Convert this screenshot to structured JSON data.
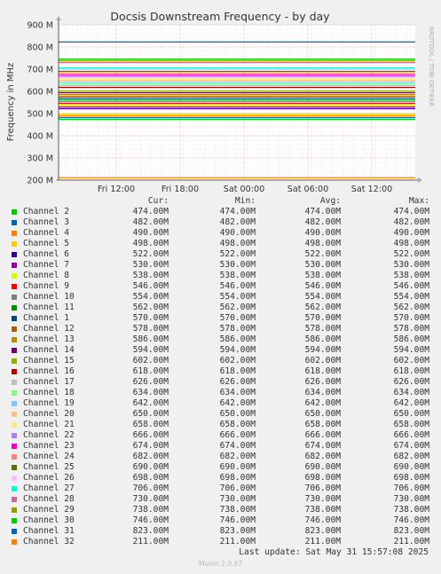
{
  "chart_data": {
    "type": "line",
    "title": "Docsis Downstream Frequency - by day",
    "ylabel": "Frequency in MHz",
    "side_label": "RRDTOOL / TOBI OETIKER",
    "ylim": [
      200,
      900
    ],
    "y_ticks": [
      "200 M",
      "300 M",
      "400 M",
      "500 M",
      "600 M",
      "700 M",
      "800 M",
      "900 M"
    ],
    "x_ticks": [
      "Fri 12:00",
      "Fri 18:00",
      "Sat 00:00",
      "Sat 06:00",
      "Sat 12:00"
    ],
    "grid": true,
    "legend_headers": {
      "cur": "Cur:",
      "min": "Min:",
      "avg": "Avg:",
      "max": "Max:"
    },
    "series": [
      {
        "name": "Channel 2",
        "color": "#00cc00",
        "value": 474,
        "cur": "474.00M",
        "min": "474.00M",
        "avg": "474.00M",
        "max": "474.00M"
      },
      {
        "name": "Channel 3",
        "color": "#0066b3",
        "value": 482,
        "cur": "482.00M",
        "min": "482.00M",
        "avg": "482.00M",
        "max": "482.00M"
      },
      {
        "name": "Channel 4",
        "color": "#ff8000",
        "value": 490,
        "cur": "490.00M",
        "min": "490.00M",
        "avg": "490.00M",
        "max": "490.00M"
      },
      {
        "name": "Channel 5",
        "color": "#ffcc00",
        "value": 498,
        "cur": "498.00M",
        "min": "498.00M",
        "avg": "498.00M",
        "max": "498.00M"
      },
      {
        "name": "Channel 6",
        "color": "#330099",
        "value": 522,
        "cur": "522.00M",
        "min": "522.00M",
        "avg": "522.00M",
        "max": "522.00M"
      },
      {
        "name": "Channel 7",
        "color": "#990099",
        "value": 530,
        "cur": "530.00M",
        "min": "530.00M",
        "avg": "530.00M",
        "max": "530.00M"
      },
      {
        "name": "Channel 8",
        "color": "#ccff00",
        "value": 538,
        "cur": "538.00M",
        "min": "538.00M",
        "avg": "538.00M",
        "max": "538.00M"
      },
      {
        "name": "Channel 9",
        "color": "#ff0000",
        "value": 546,
        "cur": "546.00M",
        "min": "546.00M",
        "avg": "546.00M",
        "max": "546.00M"
      },
      {
        "name": "Channel 10",
        "color": "#808080",
        "value": 554,
        "cur": "554.00M",
        "min": "554.00M",
        "avg": "554.00M",
        "max": "554.00M"
      },
      {
        "name": "Channel 11",
        "color": "#008f00",
        "value": 562,
        "cur": "562.00M",
        "min": "562.00M",
        "avg": "562.00M",
        "max": "562.00M"
      },
      {
        "name": "Channel 1",
        "color": "#00487d",
        "value": 570,
        "cur": "570.00M",
        "min": "570.00M",
        "avg": "570.00M",
        "max": "570.00M"
      },
      {
        "name": "Channel 12",
        "color": "#b35a00",
        "value": 578,
        "cur": "578.00M",
        "min": "578.00M",
        "avg": "578.00M",
        "max": "578.00M"
      },
      {
        "name": "Channel 13",
        "color": "#b38f00",
        "value": 586,
        "cur": "586.00M",
        "min": "586.00M",
        "avg": "586.00M",
        "max": "586.00M"
      },
      {
        "name": "Channel 14",
        "color": "#6b006b",
        "value": 594,
        "cur": "594.00M",
        "min": "594.00M",
        "avg": "594.00M",
        "max": "594.00M"
      },
      {
        "name": "Channel 15",
        "color": "#8fb300",
        "value": 602,
        "cur": "602.00M",
        "min": "602.00M",
        "avg": "602.00M",
        "max": "602.00M"
      },
      {
        "name": "Channel 16",
        "color": "#b30000",
        "value": 618,
        "cur": "618.00M",
        "min": "618.00M",
        "avg": "618.00M",
        "max": "618.00M"
      },
      {
        "name": "Channel 17",
        "color": "#bebebe",
        "value": 626,
        "cur": "626.00M",
        "min": "626.00M",
        "avg": "626.00M",
        "max": "626.00M"
      },
      {
        "name": "Channel 18",
        "color": "#80ff80",
        "value": 634,
        "cur": "634.00M",
        "min": "634.00M",
        "avg": "634.00M",
        "max": "634.00M"
      },
      {
        "name": "Channel 19",
        "color": "#80c9ff",
        "value": 642,
        "cur": "642.00M",
        "min": "642.00M",
        "avg": "642.00M",
        "max": "642.00M"
      },
      {
        "name": "Channel 20",
        "color": "#ffc080",
        "value": 650,
        "cur": "650.00M",
        "min": "650.00M",
        "avg": "650.00M",
        "max": "650.00M"
      },
      {
        "name": "Channel 21",
        "color": "#ffe680",
        "value": 658,
        "cur": "658.00M",
        "min": "658.00M",
        "avg": "658.00M",
        "max": "658.00M"
      },
      {
        "name": "Channel 22",
        "color": "#aa80ff",
        "value": 666,
        "cur": "666.00M",
        "min": "666.00M",
        "avg": "666.00M",
        "max": "666.00M"
      },
      {
        "name": "Channel 23",
        "color": "#ee00cc",
        "value": 674,
        "cur": "674.00M",
        "min": "674.00M",
        "avg": "674.00M",
        "max": "674.00M"
      },
      {
        "name": "Channel 24",
        "color": "#ff8080",
        "value": 682,
        "cur": "682.00M",
        "min": "682.00M",
        "avg": "682.00M",
        "max": "682.00M"
      },
      {
        "name": "Channel 25",
        "color": "#666600",
        "value": 690,
        "cur": "690.00M",
        "min": "690.00M",
        "avg": "690.00M",
        "max": "690.00M"
      },
      {
        "name": "Channel 26",
        "color": "#ffbfff",
        "value": 698,
        "cur": "698.00M",
        "min": "698.00M",
        "avg": "698.00M",
        "max": "698.00M"
      },
      {
        "name": "Channel 27",
        "color": "#00ffcc",
        "value": 706,
        "cur": "706.00M",
        "min": "706.00M",
        "avg": "706.00M",
        "max": "706.00M"
      },
      {
        "name": "Channel 28",
        "color": "#cc6699",
        "value": 730,
        "cur": "730.00M",
        "min": "730.00M",
        "avg": "730.00M",
        "max": "730.00M"
      },
      {
        "name": "Channel 29",
        "color": "#999900",
        "value": 738,
        "cur": "738.00M",
        "min": "738.00M",
        "avg": "738.00M",
        "max": "738.00M"
      },
      {
        "name": "Channel 30",
        "color": "#00cc00",
        "value": 746,
        "cur": "746.00M",
        "min": "746.00M",
        "avg": "746.00M",
        "max": "746.00M"
      },
      {
        "name": "Channel 31",
        "color": "#0066b3",
        "value": 823,
        "cur": "823.00M",
        "min": "823.00M",
        "avg": "823.00M",
        "max": "823.00M"
      },
      {
        "name": "Channel 32",
        "color": "#ff8000",
        "value": 211,
        "cur": "211.00M",
        "min": "211.00M",
        "avg": "211.00M",
        "max": "211.00M"
      }
    ]
  },
  "footer": {
    "last_update": "Last update: Sat May 31 15:57:08 2025",
    "version": "Munin 2.0.67"
  }
}
